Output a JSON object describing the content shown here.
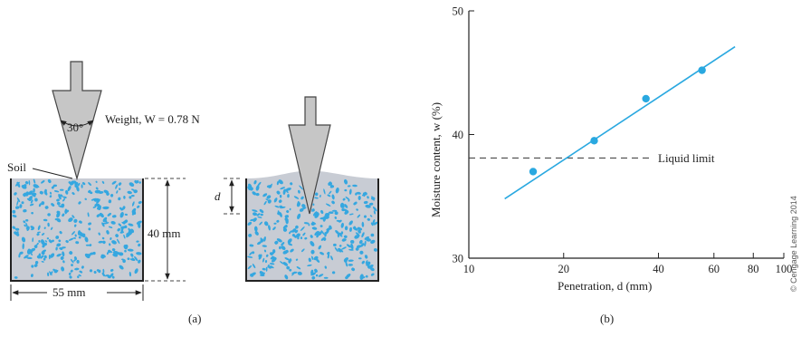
{
  "panel_a": {
    "caption": "(a)",
    "weight_label": "Weight, W = 0.78 N",
    "cone_angle": "30°",
    "soil_label": "Soil",
    "depth_label": "40 mm",
    "width_label": "55 mm",
    "penetration_label": "d",
    "colors": {
      "soil_fill": "#c8ccd4",
      "particle": "#35a7e0",
      "cone": "#c6c6c6"
    }
  },
  "panel_b": {
    "caption": "(b)",
    "copyright": "© Cengage Learning 2014",
    "chart_data": {
      "type": "scatter",
      "xlabel": "Penetration, d (mm)",
      "ylabel": "Moisture content, w (%)",
      "x_scale": "log",
      "xlim": [
        10,
        100
      ],
      "ylim": [
        30,
        50
      ],
      "x_ticks": [
        10,
        20,
        40,
        60,
        80,
        100
      ],
      "y_ticks": [
        30,
        40,
        50
      ],
      "points": [
        {
          "x": 16,
          "y": 37
        },
        {
          "x": 25,
          "y": 39.5
        },
        {
          "x": 36.5,
          "y": 42.9
        },
        {
          "x": 55,
          "y": 45.2
        }
      ],
      "fit_line": {
        "from": {
          "x": 13,
          "y": 34.8
        },
        "to": {
          "x": 70,
          "y": 47.1
        }
      },
      "reference_line": {
        "y": 38.1,
        "label": "Liquid limit",
        "style": "dashed"
      },
      "colors": {
        "points": "#29a8e0",
        "fit_line": "#29a8e0",
        "reference": "#333333"
      }
    }
  }
}
